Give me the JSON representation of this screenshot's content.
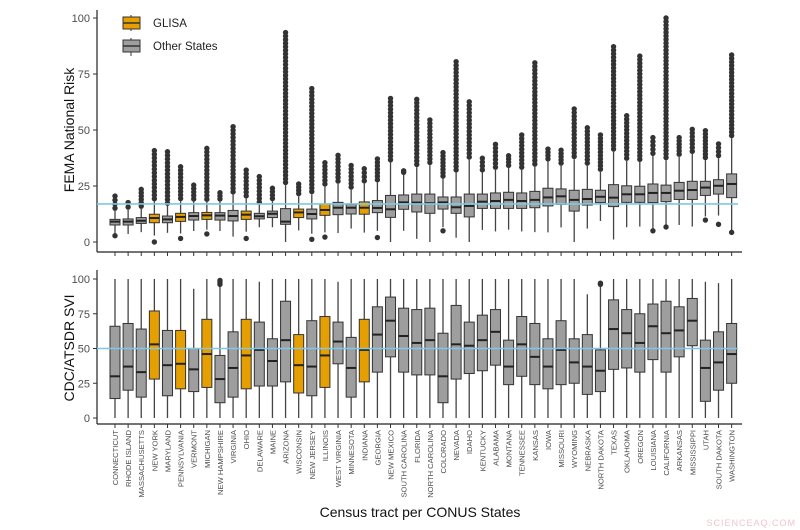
{
  "chart_data": [
    {
      "type": "boxplot",
      "ylabel": "FEMA National Risk",
      "ylim": [
        0,
        100
      ],
      "yticks": [
        0,
        25,
        50,
        75,
        100
      ],
      "reference_line": 17,
      "boxes_format": [
        "whisker_low",
        "q1",
        "median",
        "q3",
        "whisker_high",
        "outlier_min",
        "outlier_max"
      ],
      "boxes": [
        [
          3.9,
          7.6,
          9.1,
          10.1,
          13.9,
          2.8,
          20.5
        ],
        [
          3.6,
          7.6,
          9.1,
          10.3,
          14.4,
          null,
          17.6
        ],
        [
          4.4,
          8.3,
          9.5,
          10.9,
          14.8,
          null,
          23.5
        ],
        [
          2.9,
          8.6,
          10.7,
          12.4,
          18.1,
          0,
          40.8
        ],
        [
          4.1,
          8.6,
          10.1,
          11.6,
          16.1,
          null,
          40.3
        ],
        [
          3.8,
          9.2,
          11.2,
          12.8,
          18.2,
          1.6,
          33.6
        ],
        [
          4.9,
          9.8,
          11.6,
          13.1,
          18,
          null,
          25.4
        ],
        [
          5.5,
          10.1,
          11.9,
          13.2,
          17.9,
          3.6,
          41.8
        ],
        [
          4.9,
          9.8,
          11.8,
          13.1,
          18,
          null,
          22
        ],
        [
          2.4,
          9.4,
          11.6,
          14.1,
          21.2,
          null,
          51.5
        ],
        [
          4.6,
          10.1,
          12.2,
          13.8,
          19.4,
          1.6,
          32.1
        ],
        [
          6.6,
          10.3,
          11.5,
          12.8,
          16.6,
          null,
          29.2
        ],
        [
          6.6,
          10.9,
          12.6,
          13.8,
          18.2,
          null,
          24
        ],
        [
          0,
          7.9,
          9.1,
          14.9,
          25.4,
          null,
          93.5
        ],
        [
          5.2,
          10.9,
          13.2,
          14.7,
          20.4,
          null,
          25.9
        ],
        [
          3.7,
          10.3,
          12.5,
          14.7,
          21.3,
          1.2,
          68.5
        ],
        [
          4.3,
          11.9,
          14.3,
          17,
          24.7,
          2.2,
          35.4
        ],
        [
          4,
          12.2,
          15.3,
          17.7,
          26,
          null,
          38.7
        ],
        [
          6,
          12.5,
          15.3,
          16.8,
          23.3,
          null,
          34.2
        ],
        [
          4.2,
          12.4,
          15.3,
          17.9,
          26.1,
          null,
          32.7
        ],
        [
          5,
          13.1,
          15.2,
          18.5,
          26.6,
          2,
          37.1
        ],
        [
          0,
          11,
          14.6,
          20.8,
          35.5,
          null,
          64.1
        ],
        [
          5,
          14.6,
          17.7,
          21,
          30.6,
          null,
          31.1
        ],
        [
          1.4,
          13.4,
          17.6,
          21.4,
          33.4,
          null,
          63.7
        ],
        [
          0,
          12.8,
          17.3,
          21.4,
          34.3,
          null,
          54.5
        ],
        [
          6.6,
          14.7,
          17.7,
          20.1,
          28.2,
          5,
          39.9
        ],
        [
          1.9,
          12.8,
          15.5,
          20.1,
          31,
          null,
          80.5
        ],
        [
          0,
          11.2,
          16.1,
          21.4,
          36.7,
          null,
          62.6
        ],
        [
          5.4,
          15,
          18,
          21.4,
          31,
          null,
          37.4
        ],
        [
          4.7,
          15,
          18.3,
          21.9,
          32.2,
          null,
          43.6
        ],
        [
          5.5,
          15,
          18.8,
          22.2,
          33,
          null,
          38.5
        ],
        [
          4.7,
          15,
          18.3,
          21.9,
          32.2,
          null,
          47.8
        ],
        [
          4.4,
          15.3,
          18.8,
          22.6,
          33.6,
          null,
          80
        ],
        [
          4.3,
          16.1,
          19.9,
          24,
          35.9,
          null,
          41.5
        ],
        [
          6.5,
          16.8,
          20.4,
          23.7,
          34,
          null,
          41
        ],
        [
          0,
          13.8,
          18.8,
          23.1,
          37,
          null,
          59.4
        ],
        [
          6,
          16.5,
          19.2,
          23.5,
          34,
          null,
          51
        ],
        [
          9.4,
          17.6,
          20.2,
          23.1,
          31.3,
          null,
          47.8
        ],
        [
          1.1,
          15.8,
          19.8,
          25.6,
          40.3,
          null,
          87.2
        ],
        [
          6.6,
          17.7,
          21.3,
          25.1,
          36.2,
          null,
          56.4
        ],
        [
          6.9,
          17.7,
          21.3,
          24.9,
          35.7,
          null,
          83
        ],
        [
          5.2,
          17.6,
          21.9,
          25.9,
          38.4,
          5,
          46.6
        ],
        [
          6.9,
          18,
          21.9,
          25.4,
          36.5,
          6.7,
          100
        ],
        [
          7.6,
          19,
          22.9,
          26.6,
          38,
          null,
          46.6
        ],
        [
          6.9,
          19,
          23.2,
          27.1,
          39.3,
          null,
          50.3
        ],
        [
          11.4,
          20.8,
          24.3,
          27.1,
          36.5,
          9.8,
          49.7
        ],
        [
          11.8,
          21.4,
          25.1,
          27.8,
          37.4,
          7.9,
          43.8
        ],
        [
          4.3,
          19.8,
          25.9,
          30.4,
          46.3,
          4.3,
          83.5
        ]
      ]
    },
    {
      "type": "boxplot",
      "ylabel": "CDC/ATSDR SVI",
      "ylim": [
        0,
        100
      ],
      "yticks": [
        0,
        25,
        50,
        75,
        100
      ],
      "reference_line": 50,
      "boxes_format": [
        "whisker_low",
        "q1",
        "median",
        "q3",
        "whisker_high",
        "outlier_min",
        "outlier_max"
      ],
      "boxes": [
        [
          0,
          14,
          30,
          66,
          100,
          null,
          null
        ],
        [
          0,
          20,
          37,
          68,
          100,
          null,
          null
        ],
        [
          0,
          15,
          33,
          64,
          100,
          null,
          null
        ],
        [
          0,
          28,
          53,
          77,
          100,
          null,
          null
        ],
        [
          0,
          16,
          38,
          63,
          100,
          null,
          null
        ],
        [
          0,
          21,
          39,
          63,
          100,
          null,
          null
        ],
        [
          0,
          19,
          35,
          50,
          93,
          null,
          null
        ],
        [
          0,
          22,
          46,
          71,
          100,
          null,
          null
        ],
        [
          0,
          11,
          28,
          45,
          95,
          null,
          99
        ],
        [
          0,
          15,
          36,
          62,
          100,
          null,
          null
        ],
        [
          0,
          21,
          45,
          71,
          100,
          null,
          null
        ],
        [
          0,
          23,
          49,
          69,
          98,
          null,
          null
        ],
        [
          0,
          23,
          41,
          57,
          100,
          null,
          null
        ],
        [
          0,
          26,
          56,
          84,
          100,
          null,
          null
        ],
        [
          0,
          18,
          38,
          60,
          100,
          null,
          null
        ],
        [
          0,
          16,
          37,
          70,
          100,
          null,
          null
        ],
        [
          0,
          22,
          45,
          73,
          100,
          null,
          null
        ],
        [
          0,
          39,
          55,
          69,
          98,
          null,
          null
        ],
        [
          0,
          15,
          36,
          58,
          100,
          null,
          null
        ],
        [
          0,
          26,
          49,
          71,
          100,
          null,
          null
        ],
        [
          0,
          33,
          60,
          80,
          100,
          null,
          null
        ],
        [
          0,
          44,
          70,
          87,
          100,
          null,
          null
        ],
        [
          0,
          33,
          59,
          79,
          100,
          null,
          null
        ],
        [
          0,
          31,
          54,
          78,
          100,
          null,
          null
        ],
        [
          0,
          31,
          56,
          79,
          100,
          null,
          null
        ],
        [
          0,
          11,
          30,
          61,
          100,
          null,
          null
        ],
        [
          0,
          28,
          53,
          81,
          100,
          null,
          null
        ],
        [
          0,
          32,
          52,
          69,
          100,
          null,
          null
        ],
        [
          0,
          34,
          56,
          74,
          100,
          null,
          null
        ],
        [
          0,
          38,
          62,
          78,
          100,
          null,
          null
        ],
        [
          0,
          24,
          37,
          56,
          100,
          null,
          null
        ],
        [
          0,
          30,
          53,
          73,
          100,
          null,
          null
        ],
        [
          0,
          24,
          44,
          68,
          100,
          null,
          null
        ],
        [
          0,
          21,
          37,
          57,
          100,
          null,
          null
        ],
        [
          0,
          24,
          49,
          70,
          100,
          null,
          null
        ],
        [
          0,
          25,
          40,
          57,
          100,
          null,
          null
        ],
        [
          0,
          17,
          37,
          60,
          89,
          null,
          null
        ],
        [
          0,
          19,
          34,
          49,
          95,
          null,
          97
        ],
        [
          0,
          35,
          64,
          85,
          100,
          null,
          null
        ],
        [
          0,
          36,
          61,
          78,
          100,
          null,
          null
        ],
        [
          0,
          33,
          54,
          75,
          100,
          null,
          null
        ],
        [
          0,
          42,
          66,
          82,
          100,
          null,
          null
        ],
        [
          0,
          33,
          61,
          84,
          100,
          null,
          null
        ],
        [
          0,
          44,
          63,
          80,
          100,
          null,
          null
        ],
        [
          0,
          52,
          70,
          86,
          100,
          null,
          null
        ],
        [
          0,
          12,
          36,
          56,
          98,
          null,
          null
        ],
        [
          0,
          20,
          40,
          62,
          97,
          null,
          null
        ],
        [
          0,
          25,
          46,
          68,
          100,
          null,
          null
        ]
      ]
    }
  ],
  "categories": [
    "CONNECTICUT",
    "RHODE ISLAND",
    "MASSACHUSETTS",
    "NEW YORK",
    "MARYLAND",
    "PENNSYLVANIA",
    "VERMONT",
    "MICHIGAN",
    "NEW HAMPSHIRE",
    "VIRGINIA",
    "OHIO",
    "DELAWARE",
    "MAINE",
    "ARIZONA",
    "WISCONSIN",
    "NEW JERSEY",
    "ILLINOIS",
    "WEST VIRGINIA",
    "MINNESOTA",
    "INDIANA",
    "GEORGIA",
    "NEW MEXICO",
    "SOUTH CAROLINA",
    "FLORIDA",
    "NORTH CAROLINA",
    "COLORADO",
    "NEVADA",
    "IDAHO",
    "KENTUCKY",
    "ALABAMA",
    "MONTANA",
    "TENNESSEE",
    "KANSAS",
    "IOWA",
    "MISSOURI",
    "WYOMING",
    "NEBRASKA",
    "NORTH DAKOTA",
    "TEXAS",
    "OKLAHOMA",
    "OREGON",
    "LOUISIANA",
    "CALIFORNIA",
    "ARKANSAS",
    "MISSISSIPPI",
    "UTAH",
    "SOUTH DAKOTA",
    "WASHINGTON"
  ],
  "glisa_states": [
    "NEW YORK",
    "PENNSYLVANIA",
    "MICHIGAN",
    "OHIO",
    "WISCONSIN",
    "ILLINOIS",
    "INDIANA"
  ],
  "xlabel": "Census tract per CONUS States",
  "legend": {
    "placement": "top-left",
    "items": [
      {
        "label": "GLISA",
        "color": "#E69F00"
      },
      {
        "label": "Other States",
        "color": "#9E9E9E"
      }
    ]
  },
  "colors": {
    "glisa": "#E69F00",
    "other": "#9E9E9E",
    "reference_line": "#7EC8E3",
    "outline": "#333333"
  },
  "grid": false,
  "watermark": "SCIENCEAQ.COM"
}
